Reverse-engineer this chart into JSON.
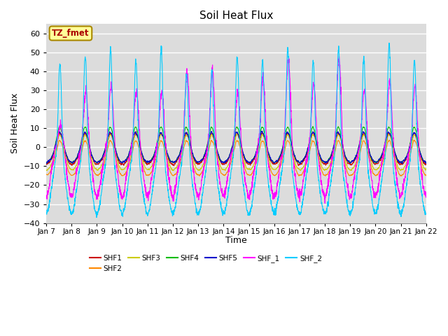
{
  "title": "Soil Heat Flux",
  "ylabel": "Soil Heat Flux",
  "xlabel": "Time",
  "ylim": [
    -40,
    65
  ],
  "series_colors": {
    "SHF1": "#cc0000",
    "SHF2": "#ff8800",
    "SHF3": "#cccc00",
    "SHF4": "#00bb00",
    "SHF5": "#0000cc",
    "SHF_1": "#ff00ff",
    "SHF_2": "#00ccff"
  },
  "legend_label": "TZ_fmet",
  "legend_box_color": "#ffff99",
  "legend_box_edge": "#aa8800",
  "legend_text_color": "#aa0000",
  "xtick_labels": [
    "Jan 7",
    "Jan 8",
    "Jan 9",
    "Jan 10",
    "Jan 11",
    "Jan 12",
    "Jan 13",
    "Jan 14",
    "Jan 15",
    "Jan 16",
    "Jan 17",
    "Jan 18",
    "Jan 19",
    "Jan 20",
    "Jan 21",
    "Jan 22"
  ],
  "background_color": "#dcdcdc",
  "grid_color": "#ffffff",
  "n_days": 15,
  "pts_per_day": 144,
  "title_fontsize": 11,
  "axis_fontsize": 9,
  "tick_fontsize": 8
}
